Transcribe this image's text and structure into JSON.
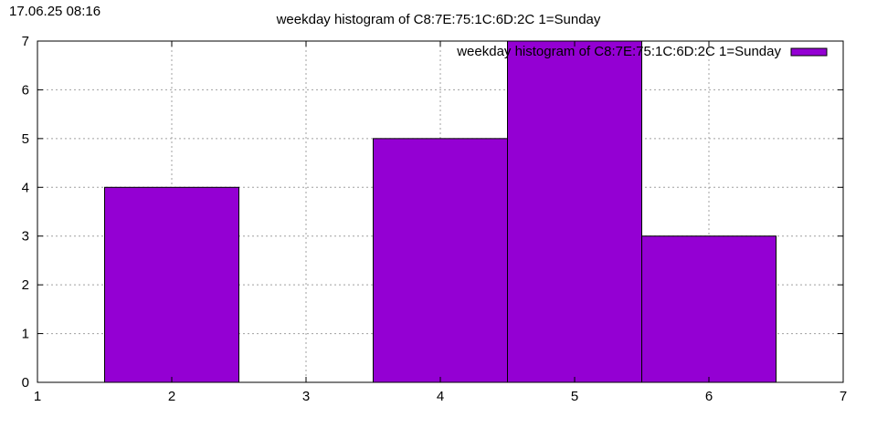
{
  "timestamp": "17.06.25 08:16",
  "chart_data": {
    "type": "bar",
    "title": "weekday histogram of C8:7E:75:1C:6D:2C 1=Sunday",
    "xlabel": "",
    "ylabel": "",
    "xlim": [
      1,
      7
    ],
    "ylim": [
      0,
      7
    ],
    "xticks": [
      1,
      2,
      3,
      4,
      5,
      6,
      7
    ],
    "yticks": [
      0,
      1,
      2,
      3,
      4,
      5,
      6,
      7
    ],
    "grid": true,
    "legend_position": "top-right",
    "bar_width": 1,
    "series": [
      {
        "name": "weekday histogram of C8:7E:75:1C:6D:2C 1=Sunday",
        "color": "#9400d3",
        "x": [
          2,
          4,
          5,
          6
        ],
        "values": [
          4,
          5,
          7,
          3
        ]
      }
    ]
  }
}
